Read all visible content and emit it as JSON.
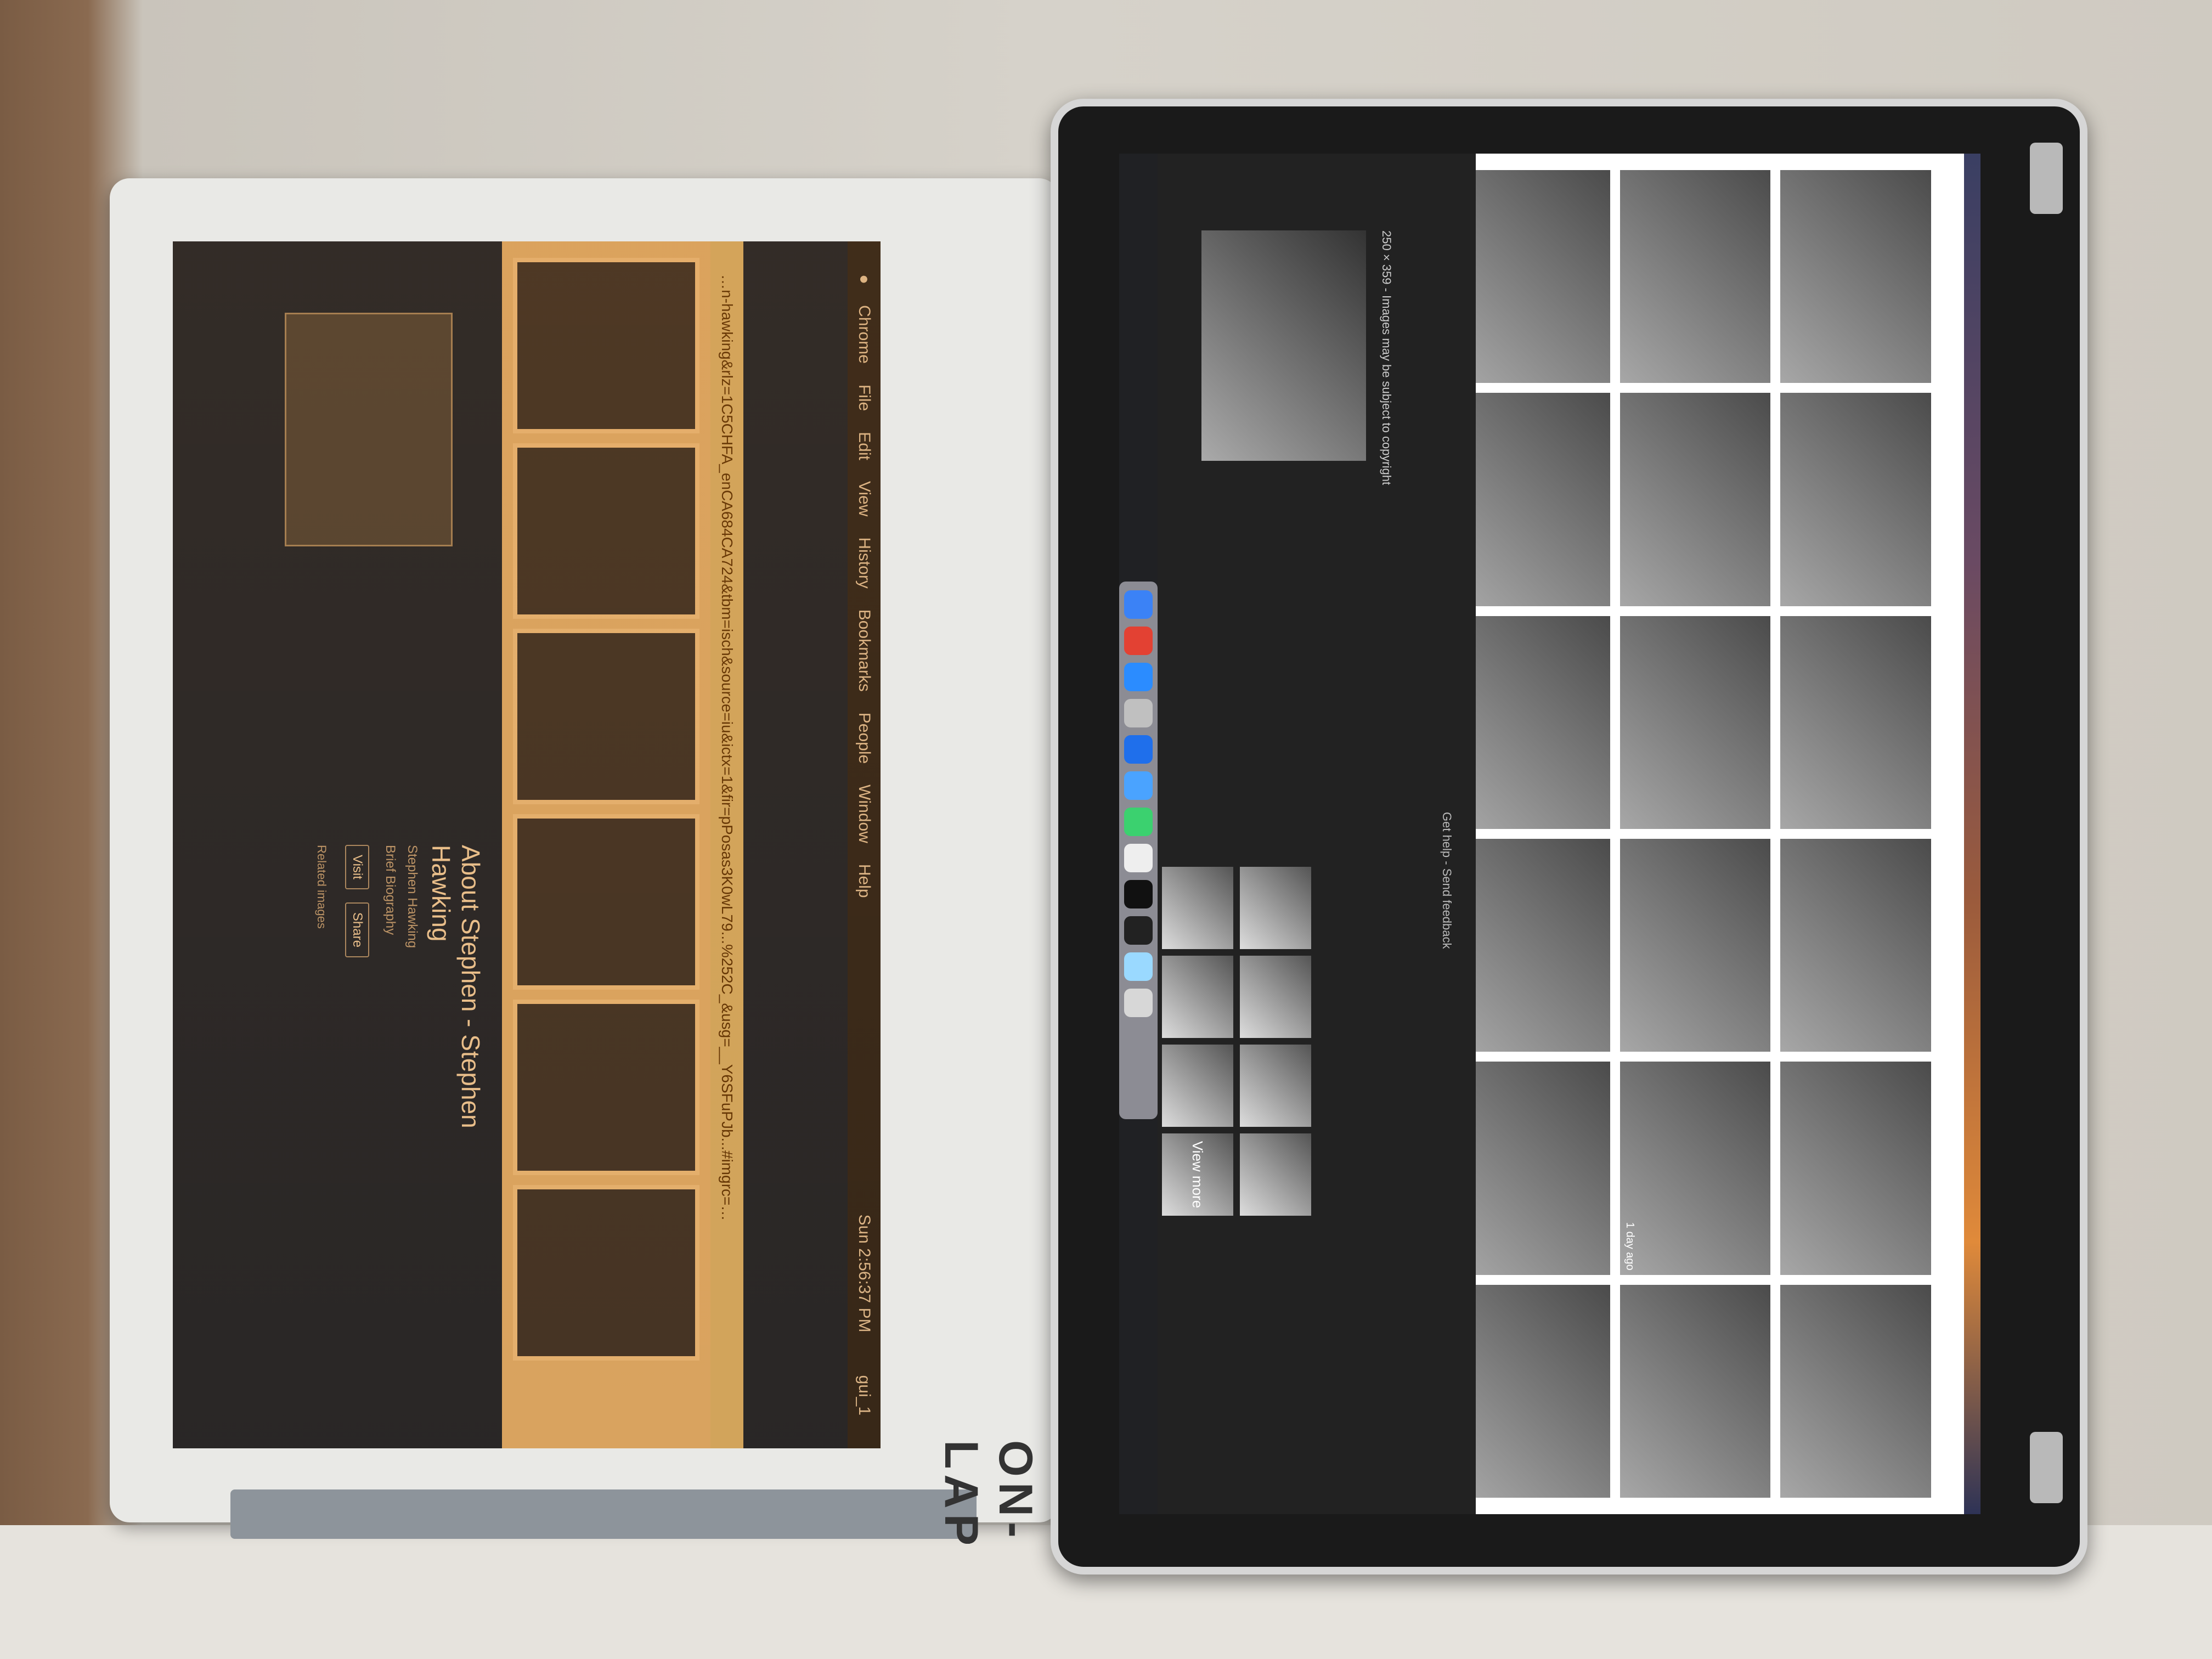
{
  "left_monitor": {
    "brand": "ON-LAP",
    "browser_menu": [
      "Chrome",
      "File",
      "Edit",
      "View",
      "History",
      "Bookmarks",
      "People",
      "Window",
      "Help"
    ],
    "clock": "Sun 2:56:37 PM",
    "user": "gui_1",
    "address_text": "…n-hawking&rlz=1C5CHFA_enCA684CA724&tbm=isch&source=iu&ictx=1&fir=pPosas3K0wL79...%252C_&usg=__Y6SFuPJb...#imgrc=…",
    "knowledge_panel": {
      "title": "About Stephen - Stephen Hawking",
      "subtitle": "Stephen Hawking",
      "detail": "Brief Biography",
      "actions": [
        "Visit",
        "Share"
      ],
      "related_label": "Related images"
    },
    "tile_count_label": ""
  },
  "right_monitor": {
    "image_caption": "250 × 359 - Images may be subject to copyright",
    "help_links": "Get help - Send feedback",
    "view_more": "View more",
    "timestamp": "1 day ago"
  }
}
